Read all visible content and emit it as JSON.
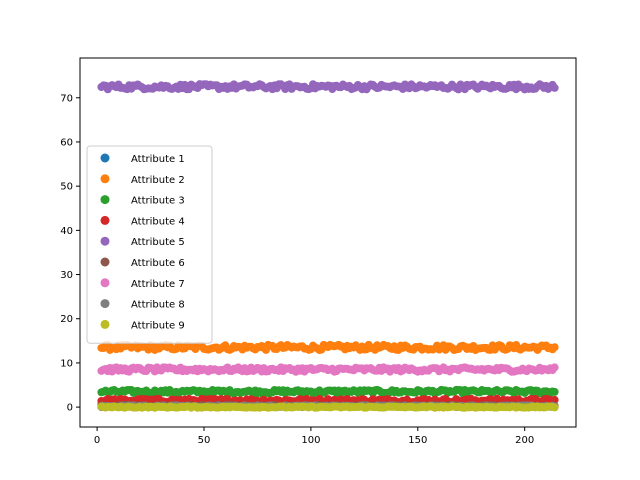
{
  "chart_data": {
    "type": "scatter",
    "xlim": [
      -8,
      224
    ],
    "ylim": [
      -4.5,
      79
    ],
    "x_ticks": [
      0,
      50,
      100,
      150,
      200
    ],
    "y_ticks": [
      0,
      10,
      20,
      30,
      40,
      50,
      60,
      70
    ],
    "grid": false,
    "legend_position": "center-left",
    "x_range": [
      2,
      214
    ],
    "series": [
      {
        "name": "Attribute 1",
        "color": "#1f77b4",
        "level": 0.5,
        "spread": 0.3
      },
      {
        "name": "Attribute 2",
        "color": "#ff7f0e",
        "level": 13.5,
        "spread": 0.6
      },
      {
        "name": "Attribute 3",
        "color": "#2ca02c",
        "level": 3.5,
        "spread": 0.4
      },
      {
        "name": "Attribute 4",
        "color": "#d62728",
        "level": 1.5,
        "spread": 0.4
      },
      {
        "name": "Attribute 5",
        "color": "#9467bd",
        "level": 72.5,
        "spread": 0.6
      },
      {
        "name": "Attribute 6",
        "color": "#8c564b",
        "level": 0.3,
        "spread": 0.2
      },
      {
        "name": "Attribute 7",
        "color": "#e377c2",
        "level": 8.5,
        "spread": 0.5
      },
      {
        "name": "Attribute 8",
        "color": "#7f7f7f",
        "level": 0.2,
        "spread": 0.2
      },
      {
        "name": "Attribute 9",
        "color": "#bcbd22",
        "level": 0.0,
        "spread": 0.15
      }
    ]
  }
}
